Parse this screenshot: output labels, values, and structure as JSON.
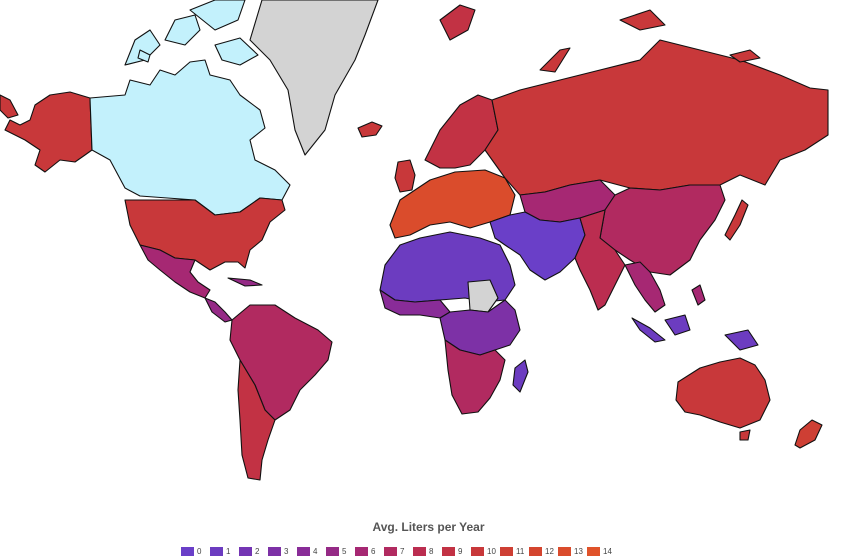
{
  "legend": {
    "title": "Avg. Liters per Year",
    "items": [
      {
        "label": "0",
        "color": "#6a3fc8"
      },
      {
        "label": "1",
        "color": "#6c3cc0"
      },
      {
        "label": "2",
        "color": "#7435b4"
      },
      {
        "label": "3",
        "color": "#7d31a6"
      },
      {
        "label": "4",
        "color": "#892c98"
      },
      {
        "label": "5",
        "color": "#952a86"
      },
      {
        "label": "6",
        "color": "#a62873"
      },
      {
        "label": "7",
        "color": "#b12a60"
      },
      {
        "label": "8",
        "color": "#bb2d50"
      },
      {
        "label": "9",
        "color": "#c23244"
      },
      {
        "label": "10",
        "color": "#c8383a"
      },
      {
        "label": "11",
        "color": "#ce3f34"
      },
      {
        "label": "12",
        "color": "#d4452f"
      },
      {
        "label": "13",
        "color": "#da4c2c"
      },
      {
        "label": "14",
        "color": "#e0532a"
      }
    ]
  },
  "colors": {
    "no_data": "#d3d3d3",
    "canada": "#c3f1fc",
    "background": "#ffffff"
  },
  "regions": [
    {
      "name": "alaska",
      "color": "#c8383a"
    },
    {
      "name": "canada",
      "color": "#c3f1fc"
    },
    {
      "name": "greenland",
      "color": "#d3d3d3"
    },
    {
      "name": "usa",
      "color": "#c8383a"
    },
    {
      "name": "mexico",
      "color": "#a62873"
    },
    {
      "name": "central-america",
      "color": "#952a86"
    },
    {
      "name": "south-america",
      "color": "#b12a60"
    },
    {
      "name": "chile-argentina",
      "color": "#c23244"
    },
    {
      "name": "europe-west",
      "color": "#da4c2c"
    },
    {
      "name": "iceland",
      "color": "#c8383a"
    },
    {
      "name": "scandinavia",
      "color": "#c23244"
    },
    {
      "name": "russia",
      "color": "#c8383a"
    },
    {
      "name": "middle-east",
      "color": "#6a3fc8"
    },
    {
      "name": "central-asia",
      "color": "#a62873"
    },
    {
      "name": "china",
      "color": "#b12a60"
    },
    {
      "name": "india",
      "color": "#bb2d50"
    },
    {
      "name": "southeast-asia",
      "color": "#a62873"
    },
    {
      "name": "indonesia",
      "color": "#6c3cc0"
    },
    {
      "name": "north-africa",
      "color": "#6c3cc0"
    },
    {
      "name": "west-africa",
      "color": "#892c98"
    },
    {
      "name": "central-africa",
      "color": "#7d31a6"
    },
    {
      "name": "southern-africa",
      "color": "#b12a60"
    },
    {
      "name": "madagascar",
      "color": "#6c3cc0"
    },
    {
      "name": "sudan",
      "color": "#d3d3d3"
    },
    {
      "name": "australia",
      "color": "#c8383a"
    },
    {
      "name": "new-zealand",
      "color": "#ce3f34"
    },
    {
      "name": "japan",
      "color": "#c8383a"
    },
    {
      "name": "uk-ireland",
      "color": "#c8383a"
    }
  ]
}
